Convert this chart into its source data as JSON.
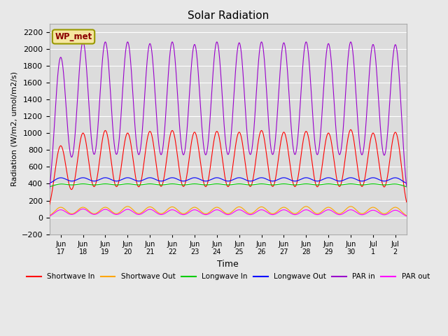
{
  "title": "Solar Radiation",
  "ylabel": "Radiation (W/m2, umol/m2/s)",
  "xlabel": "Time",
  "annotation": "WP_met",
  "ylim": [
    -200,
    2300
  ],
  "yticks": [
    -200,
    0,
    200,
    400,
    600,
    800,
    1000,
    1200,
    1400,
    1600,
    1800,
    2000,
    2200
  ],
  "background_color": "#e8e8e8",
  "plot_bg_color": "#dcdcdc",
  "grid_color": "#ffffff",
  "series": {
    "shortwave_in": {
      "color": "#ff0000",
      "label": "Shortwave In"
    },
    "shortwave_out": {
      "color": "#ffa500",
      "label": "Shortwave Out"
    },
    "longwave_in": {
      "color": "#00cc00",
      "label": "Longwave In"
    },
    "longwave_out": {
      "color": "#0000ff",
      "label": "Longwave Out"
    },
    "par_in": {
      "color": "#9900cc",
      "label": "PAR in"
    },
    "par_out": {
      "color": "#ff00ff",
      "label": "PAR out"
    }
  },
  "shortwave_in_peaks": [
    850,
    1000,
    1030,
    1000,
    1020,
    1030,
    1010,
    1020,
    1010,
    1030,
    1010,
    1020,
    1000,
    1040,
    1000,
    1010
  ],
  "shortwave_out_peaks": [
    120,
    120,
    120,
    130,
    125,
    125,
    120,
    120,
    125,
    125,
    120,
    130,
    120,
    130,
    120,
    120
  ],
  "longwave_in_baseline": 340,
  "longwave_in_day_peak": 395,
  "longwave_out_baseline": 375,
  "longwave_out_day_peak": 470,
  "par_in_peaks": [
    1900,
    2080,
    2080,
    2080,
    2060,
    2080,
    2050,
    2080,
    2070,
    2080,
    2070,
    2080,
    2060,
    2080,
    2050,
    2050
  ],
  "par_out_peaks": [
    90,
    100,
    95,
    95,
    95,
    90,
    90,
    90,
    90,
    90,
    90,
    90,
    90,
    90,
    85,
    85
  ],
  "xticklabels": [
    "Jun 17",
    "Jun 18",
    "Jun 19",
    "Jun 20",
    "Jun 21",
    "Jun 22",
    "Jun 23",
    "Jun 24",
    "Jun 25",
    "Jun 26",
    "Jun 27",
    "Jun 28",
    "Jun 29",
    "Jun 30",
    "Jul 1",
    "Jul 2"
  ],
  "xtick_positions": [
    1,
    2,
    3,
    4,
    5,
    6,
    7,
    8,
    9,
    10,
    11,
    12,
    13,
    14,
    15,
    16
  ]
}
